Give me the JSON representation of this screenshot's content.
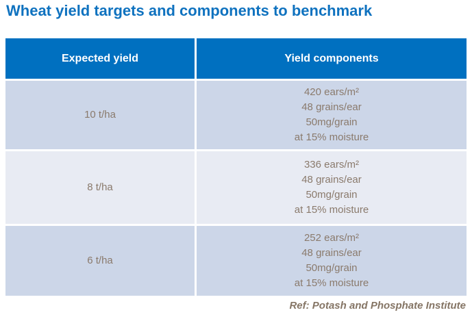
{
  "title": "Wheat yield targets and components to benchmark",
  "colors": {
    "title_text": "#0f72bf",
    "header_bg": "#0070c0",
    "header_text": "#ffffff",
    "row_light_blue": "#ccd6e8",
    "row_light_gray": "#e8ebf3",
    "body_text": "#8a7a6c",
    "footer_text": "#857565"
  },
  "table": {
    "headers": [
      "Expected yield",
      "Yield components"
    ],
    "rows": [
      {
        "yield": "10 t/ha",
        "components": [
          "420 ears/m²",
          "48 grains/ear",
          "50mg/grain",
          "at 15% moisture"
        ]
      },
      {
        "yield": "8 t/ha",
        "components": [
          "336 ears/m²",
          "48 grains/ear",
          "50mg/grain",
          "at 15% moisture"
        ]
      },
      {
        "yield": "6 t/ha",
        "components": [
          "252 ears/m²",
          "48 grains/ear",
          "50mg/grain",
          "at 15% moisture"
        ]
      }
    ]
  },
  "footer": {
    "reference": "Ref: Potash and Phosphate Institute"
  }
}
